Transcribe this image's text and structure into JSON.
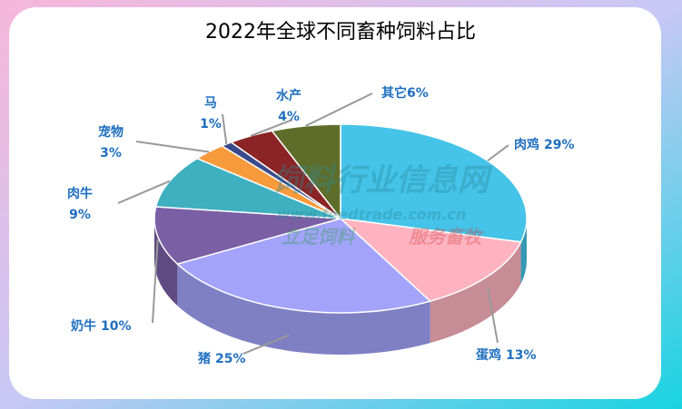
{
  "chart_data": {
    "type": "pie",
    "title": "2022年全球不同畜种饲料占比",
    "categories": [
      "肉鸡",
      "蛋鸡",
      "猪",
      "奶牛",
      "肉牛",
      "宠物",
      "马",
      "水产",
      "其它"
    ],
    "values": [
      29,
      13,
      25,
      10,
      9,
      3,
      1,
      4,
      6
    ],
    "value_labels": [
      "29%",
      "13%",
      "25%",
      "10%",
      "9%",
      "3%",
      "1%",
      "4%",
      "6%"
    ],
    "colors": [
      "#45c3e8",
      "#ffb3c0",
      "#a3a3fb",
      "#7a5fa5",
      "#3fb0c0",
      "#f79a3c",
      "#3a4a8a",
      "#8b2424",
      "#5e6e2a"
    ],
    "watermark": [
      "饲料行业信息网",
      "www.feedtrade.com.cn",
      "立足饲料",
      "服务畜牧"
    ]
  }
}
